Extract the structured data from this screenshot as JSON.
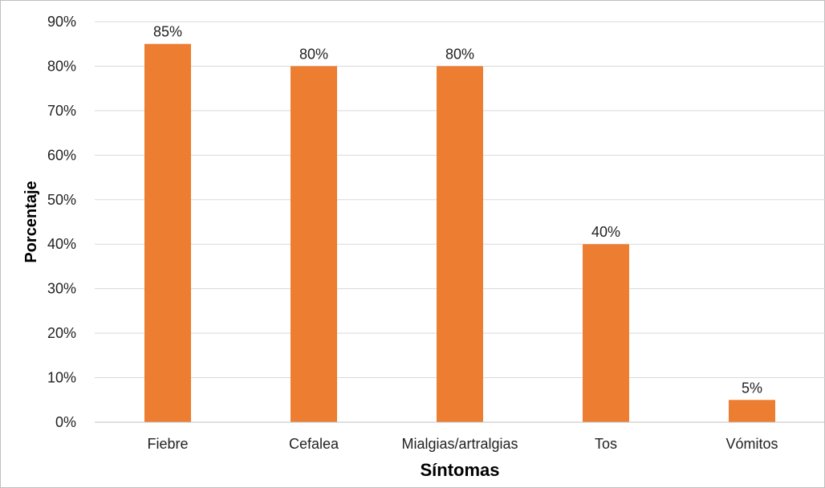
{
  "chart_data": {
    "type": "bar",
    "categories": [
      "Fiebre",
      "Cefalea",
      "Mialgias/artralgias",
      "Tos",
      "Vómitos"
    ],
    "values": [
      85,
      80,
      80,
      40,
      5
    ],
    "data_labels": [
      "85%",
      "80%",
      "80%",
      "40%",
      "5%"
    ],
    "xlabel": "Síntomas",
    "ylabel": "Porcentaje",
    "ylim": [
      0,
      90
    ],
    "yticks": [
      0,
      10,
      20,
      30,
      40,
      50,
      60,
      70,
      80,
      90
    ],
    "ytick_labels": [
      "0%",
      "10%",
      "20%",
      "30%",
      "40%",
      "50%",
      "60%",
      "70%",
      "80%",
      "90%"
    ],
    "grid": true,
    "bar_color": "#ED7D31",
    "grid_color": "#d9d9d9"
  }
}
